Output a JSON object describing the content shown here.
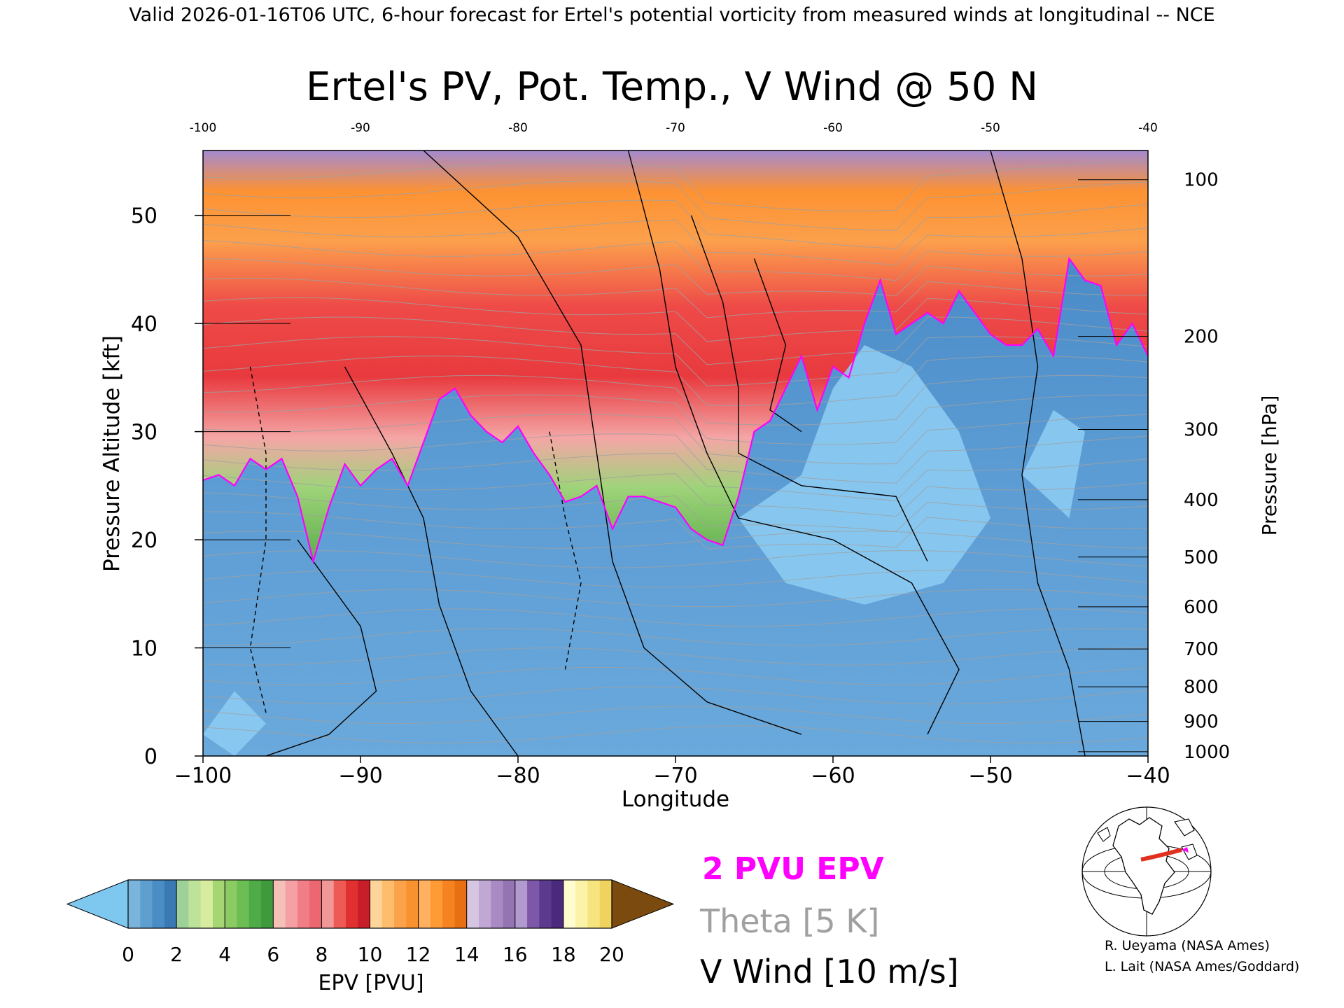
{
  "header": {
    "valid_line": "Valid 2026-01-16T06 UTC, 6-hour forecast for Ertel's potential vorticity from measured winds at longitudinal -- NCE"
  },
  "chart_data": {
    "type": "heatmap",
    "title": "Ertel's PV, Pot. Temp., V Wind @ 50 N",
    "xlabel": "Longitude",
    "ylabel": "Pressure Altitude [kft]",
    "y2label": "Pressure [hPa]",
    "xlim": [
      -100,
      -40
    ],
    "ylim": [
      0,
      56
    ],
    "x_ticks": [
      -100,
      -90,
      -80,
      -70,
      -60,
      -50,
      -40
    ],
    "x_tick_labels": [
      "−100",
      "−90",
      "−80",
      "−70",
      "−60",
      "−50",
      "−40"
    ],
    "x_top_tick_labels": [
      "-100",
      "-90",
      "-80",
      "-70",
      "-60",
      "-50",
      "-40"
    ],
    "y_ticks": [
      0,
      10,
      20,
      30,
      40,
      50
    ],
    "y_tick_labels": [
      "0",
      "10",
      "20",
      "30",
      "40",
      "50"
    ],
    "pressure_ticks": [
      {
        "hpa": 100,
        "kft": 53.3,
        "label": "100"
      },
      {
        "hpa": 200,
        "kft": 38.8,
        "label": "200"
      },
      {
        "hpa": 300,
        "kft": 30.2,
        "label": "300"
      },
      {
        "hpa": 400,
        "kft": 23.7,
        "label": "400"
      },
      {
        "hpa": 500,
        "kft": 18.4,
        "label": "500"
      },
      {
        "hpa": 600,
        "kft": 13.8,
        "label": "600"
      },
      {
        "hpa": 700,
        "kft": 9.9,
        "label": "700"
      },
      {
        "hpa": 800,
        "kft": 6.4,
        "label": "800"
      },
      {
        "hpa": 900,
        "kft": 3.2,
        "label": "900"
      },
      {
        "hpa": 1000,
        "kft": 0.4,
        "label": "1000"
      }
    ],
    "tropopause_kft": [
      [
        -100,
        25.5
      ],
      [
        -99,
        26
      ],
      [
        -98,
        25
      ],
      [
        -97,
        27.5
      ],
      [
        -96,
        26.5
      ],
      [
        -95,
        27.5
      ],
      [
        -94,
        24
      ],
      [
        -93,
        18
      ],
      [
        -92,
        23
      ],
      [
        -91,
        27
      ],
      [
        -90,
        25
      ],
      [
        -89,
        26.5
      ],
      [
        -88,
        27.5
      ],
      [
        -87,
        25
      ],
      [
        -86,
        29
      ],
      [
        -85,
        33
      ],
      [
        -84,
        34
      ],
      [
        -83,
        31.5
      ],
      [
        -82,
        30
      ],
      [
        -81,
        29
      ],
      [
        -80,
        30.5
      ],
      [
        -79,
        28
      ],
      [
        -78,
        26
      ],
      [
        -77,
        23.5
      ],
      [
        -76,
        24
      ],
      [
        -75,
        25
      ],
      [
        -74,
        21
      ],
      [
        -73,
        24
      ],
      [
        -72,
        24
      ],
      [
        -71,
        23.5
      ],
      [
        -70,
        23
      ],
      [
        -69,
        21
      ],
      [
        -68,
        20
      ],
      [
        -67,
        19.5
      ],
      [
        -66,
        24
      ],
      [
        -65,
        30
      ],
      [
        -64,
        31
      ],
      [
        -63,
        34
      ],
      [
        -62,
        37
      ],
      [
        -61,
        32
      ],
      [
        -60,
        36
      ],
      [
        -59,
        35
      ],
      [
        -58,
        40
      ],
      [
        -57,
        44
      ],
      [
        -56,
        39
      ],
      [
        -55,
        40
      ],
      [
        -54,
        41
      ],
      [
        -53,
        40
      ],
      [
        -52,
        43
      ],
      [
        -51,
        41
      ],
      [
        -50,
        39
      ],
      [
        -49,
        38
      ],
      [
        -48,
        38
      ],
      [
        -47,
        39.5
      ],
      [
        -46,
        37
      ],
      [
        -45,
        46
      ],
      [
        -44,
        44
      ],
      [
        -43,
        43.5
      ],
      [
        -42,
        38
      ],
      [
        -41,
        40
      ],
      [
        -40,
        37
      ]
    ],
    "colorbar": {
      "label": "EPV [PVU]",
      "ticks": [
        0,
        2,
        4,
        6,
        8,
        10,
        12,
        14,
        16,
        18,
        20
      ],
      "tick_labels": [
        "0",
        "2",
        "4",
        "6",
        "8",
        "10",
        "12",
        "14",
        "16",
        "18",
        "20"
      ],
      "under_color": "#7ec8f0",
      "over_color": "#7b4a0f",
      "colors": [
        "#7ab4dc",
        "#5e9fd0",
        "#4a8cc4",
        "#3a79b4",
        "#9ed09a",
        "#bde39a",
        "#d8ec9f",
        "#a6d673",
        "#8cca63",
        "#6cbd53",
        "#4eab47",
        "#3e9a3c",
        "#f4c0b8",
        "#f5a0a4",
        "#f17e86",
        "#ec6770",
        "#f09898",
        "#ee5a55",
        "#e03030",
        "#c81e2a",
        "#fdd49a",
        "#fdbd6c",
        "#fca24a",
        "#f8922f",
        "#ffb060",
        "#ff9b35",
        "#f58420",
        "#e86f12",
        "#d6c6e2",
        "#c1a8d4",
        "#a98ac3",
        "#9475b4",
        "#b29ad0",
        "#7e58a8",
        "#5c3a8e",
        "#4a2a7c",
        "#fffdcf",
        "#fbf3a8",
        "#f6e47e",
        "#efd35e"
      ]
    }
  },
  "legend": {
    "pv_label": "2 PVU EPV",
    "pv_color": "#ff00ff",
    "theta_label": "Theta [5 K]",
    "theta_color": "#a0a0a0",
    "wind_label": "V Wind [10 m/s]",
    "wind_color": "#000000"
  },
  "credits": {
    "line1": "R. Ueyama (NASA Ames)",
    "line2": "L. Lait (NASA Ames/Goddard)"
  },
  "colors": {
    "below_tropopause": "#4f8fcc",
    "above_tropopause_low": "#6cbf55",
    "above_tropopause_mid": "#e8454a",
    "above_tropopause_high": "#fc9a3a",
    "top_band": "#9b7bc2",
    "core_low_pv": "#8ccbf2",
    "map_track": "#e0301f"
  }
}
